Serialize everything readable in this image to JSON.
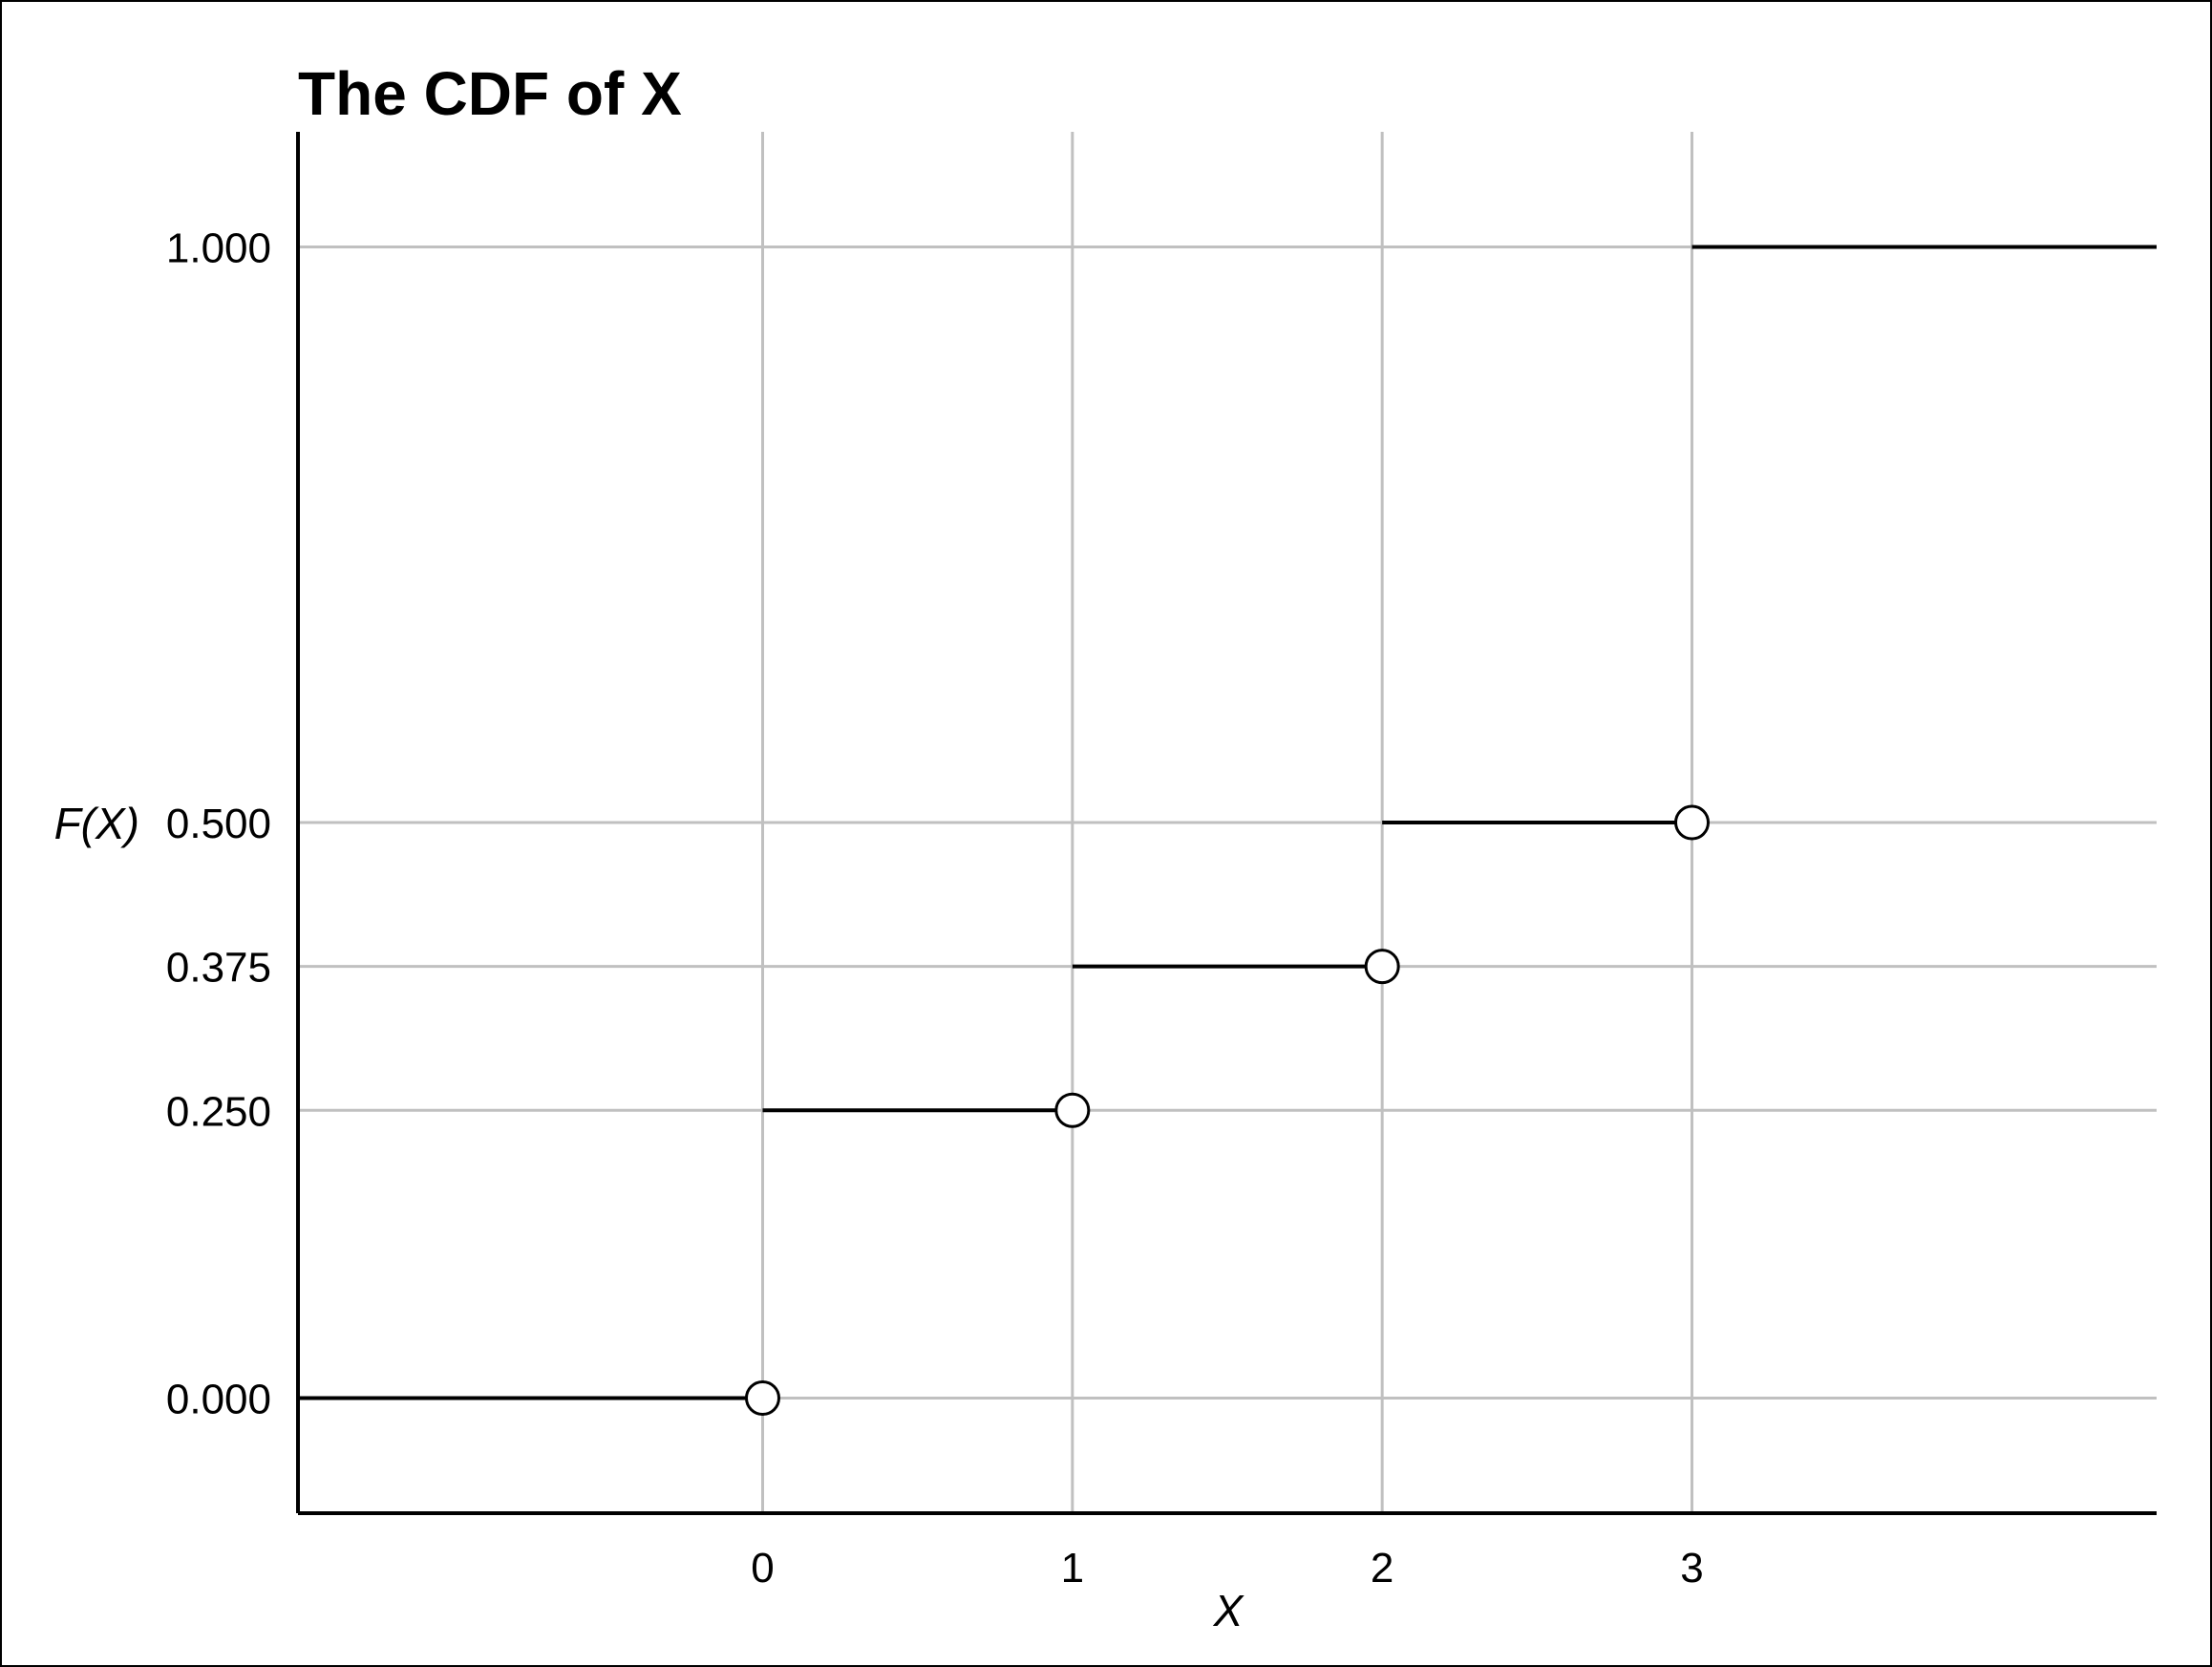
{
  "chart_data": {
    "type": "line",
    "title": "The CDF of X",
    "xlabel": "X",
    "ylabel": "F(X)",
    "xlim": [
      -1.5,
      4.5
    ],
    "ylim": [
      -0.1,
      1.1
    ],
    "x_ticks": [
      0,
      1,
      2,
      3
    ],
    "x_tick_labels": [
      "0",
      "1",
      "2",
      "3"
    ],
    "y_ticks": [
      0,
      0.25,
      0.375,
      0.5,
      1
    ],
    "y_tick_labels": [
      "0.000",
      "0.250",
      "0.375",
      "0.500",
      "1.000"
    ],
    "grid": true,
    "series": [
      {
        "style": "step",
        "segments": [
          {
            "x_start": -1.5,
            "x_end": 0,
            "y": 0,
            "open_end": true
          },
          {
            "x_start": 0,
            "x_end": 1,
            "y": 0.25,
            "open_end": true
          },
          {
            "x_start": 1,
            "x_end": 2,
            "y": 0.375,
            "open_end": true
          },
          {
            "x_start": 2,
            "x_end": 3,
            "y": 0.5,
            "open_end": true
          },
          {
            "x_start": 3,
            "x_end": 4.5,
            "y": 1,
            "open_end": false
          }
        ]
      }
    ],
    "colors": {
      "line": "#000000",
      "grid": "#c0c0c0",
      "axis": "#000000",
      "marker_fill": "#ffffff"
    }
  }
}
